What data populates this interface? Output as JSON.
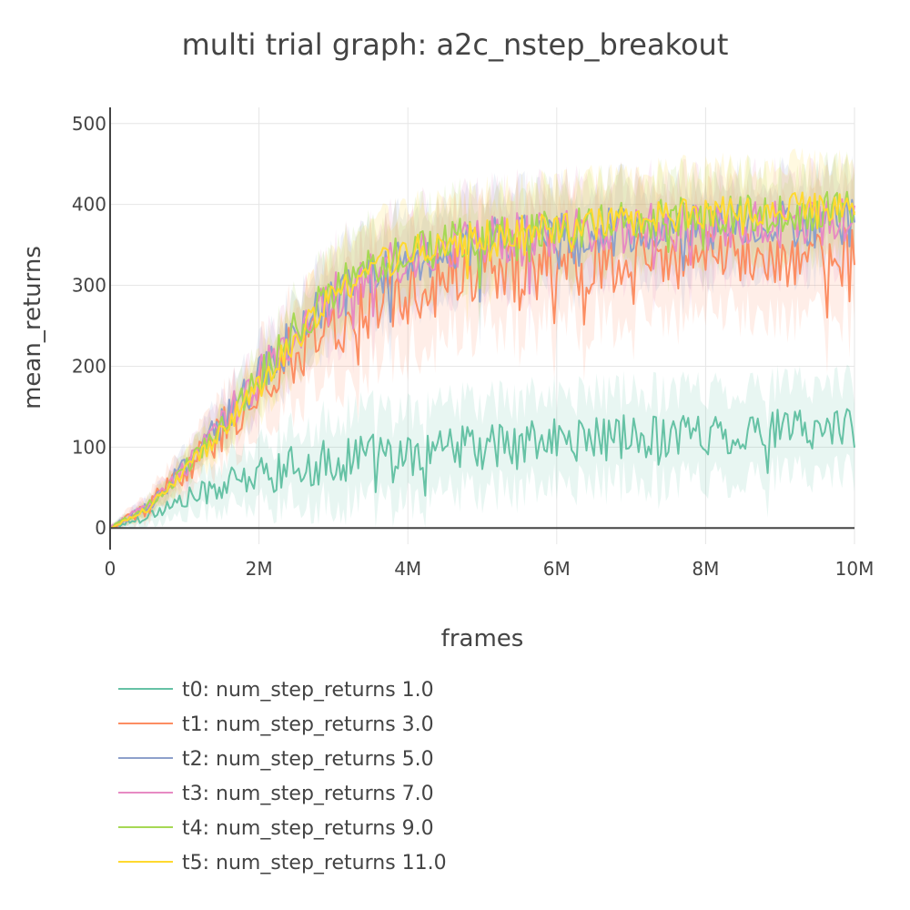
{
  "chart_data": {
    "type": "line",
    "title": "multi trial graph: a2c_nstep_breakout",
    "xlabel": "frames",
    "ylabel": "mean_returns",
    "xlim": [
      0,
      10000000
    ],
    "ylim": [
      -20,
      520
    ],
    "x_ticks": [
      {
        "value": 0,
        "label": "0"
      },
      {
        "value": 2000000,
        "label": "2M"
      },
      {
        "value": 4000000,
        "label": "4M"
      },
      {
        "value": 6000000,
        "label": "6M"
      },
      {
        "value": 8000000,
        "label": "8M"
      },
      {
        "value": 10000000,
        "label": "10M"
      }
    ],
    "y_ticks": [
      {
        "value": 0,
        "label": "0"
      },
      {
        "value": 100,
        "label": "100"
      },
      {
        "value": 200,
        "label": "200"
      },
      {
        "value": 300,
        "label": "300"
      },
      {
        "value": 400,
        "label": "400"
      },
      {
        "value": 500,
        "label": "500"
      }
    ],
    "grid": true,
    "legend_position": "bottom",
    "x": [
      0,
      500000,
      1000000,
      1500000,
      2000000,
      2500000,
      3000000,
      3500000,
      4000000,
      4500000,
      5000000,
      5500000,
      6000000,
      6500000,
      7000000,
      7500000,
      8000000,
      8500000,
      9000000,
      9500000,
      10000000
    ],
    "series": [
      {
        "name": "t0: num_step_returns 1.0",
        "color": "#66c2a5",
        "values": [
          0,
          15,
          35,
          52,
          65,
          75,
          82,
          88,
          92,
          97,
          100,
          105,
          108,
          110,
          112,
          115,
          117,
          118,
          120,
          123,
          125
        ],
        "noise": 28,
        "band": 55
      },
      {
        "name": "t1: num_step_returns 3.0",
        "color": "#fc8d62",
        "values": [
          0,
          25,
          70,
          120,
          175,
          220,
          250,
          275,
          290,
          305,
          315,
          320,
          325,
          330,
          332,
          334,
          335,
          336,
          337,
          338,
          338
        ],
        "noise": 40,
        "band": 70
      },
      {
        "name": "t2: num_step_returns 5.0",
        "color": "#8da0cb",
        "values": [
          0,
          27,
          75,
          130,
          185,
          240,
          280,
          310,
          330,
          345,
          355,
          360,
          365,
          368,
          370,
          372,
          373,
          374,
          375,
          376,
          377
        ],
        "noise": 30,
        "band": 55
      },
      {
        "name": "t3: num_step_returns 7.0",
        "color": "#e78ac3",
        "values": [
          0,
          27,
          75,
          130,
          185,
          240,
          285,
          315,
          335,
          348,
          357,
          362,
          366,
          368,
          370,
          372,
          373,
          374,
          375,
          376,
          377
        ],
        "noise": 30,
        "band": 55
      },
      {
        "name": "t4: num_step_returns 9.0",
        "color": "#a6d854",
        "values": [
          0,
          26,
          72,
          128,
          185,
          245,
          295,
          325,
          342,
          355,
          362,
          368,
          372,
          376,
          380,
          383,
          385,
          387,
          389,
          390,
          392
        ],
        "noise": 25,
        "band": 50
      },
      {
        "name": "t5: num_step_returns 11.0",
        "color": "#ffd92f",
        "values": [
          0,
          24,
          68,
          120,
          175,
          235,
          285,
          320,
          340,
          352,
          360,
          366,
          370,
          375,
          380,
          385,
          390,
          393,
          396,
          398,
          400
        ],
        "noise": 20,
        "band": 55
      }
    ]
  }
}
